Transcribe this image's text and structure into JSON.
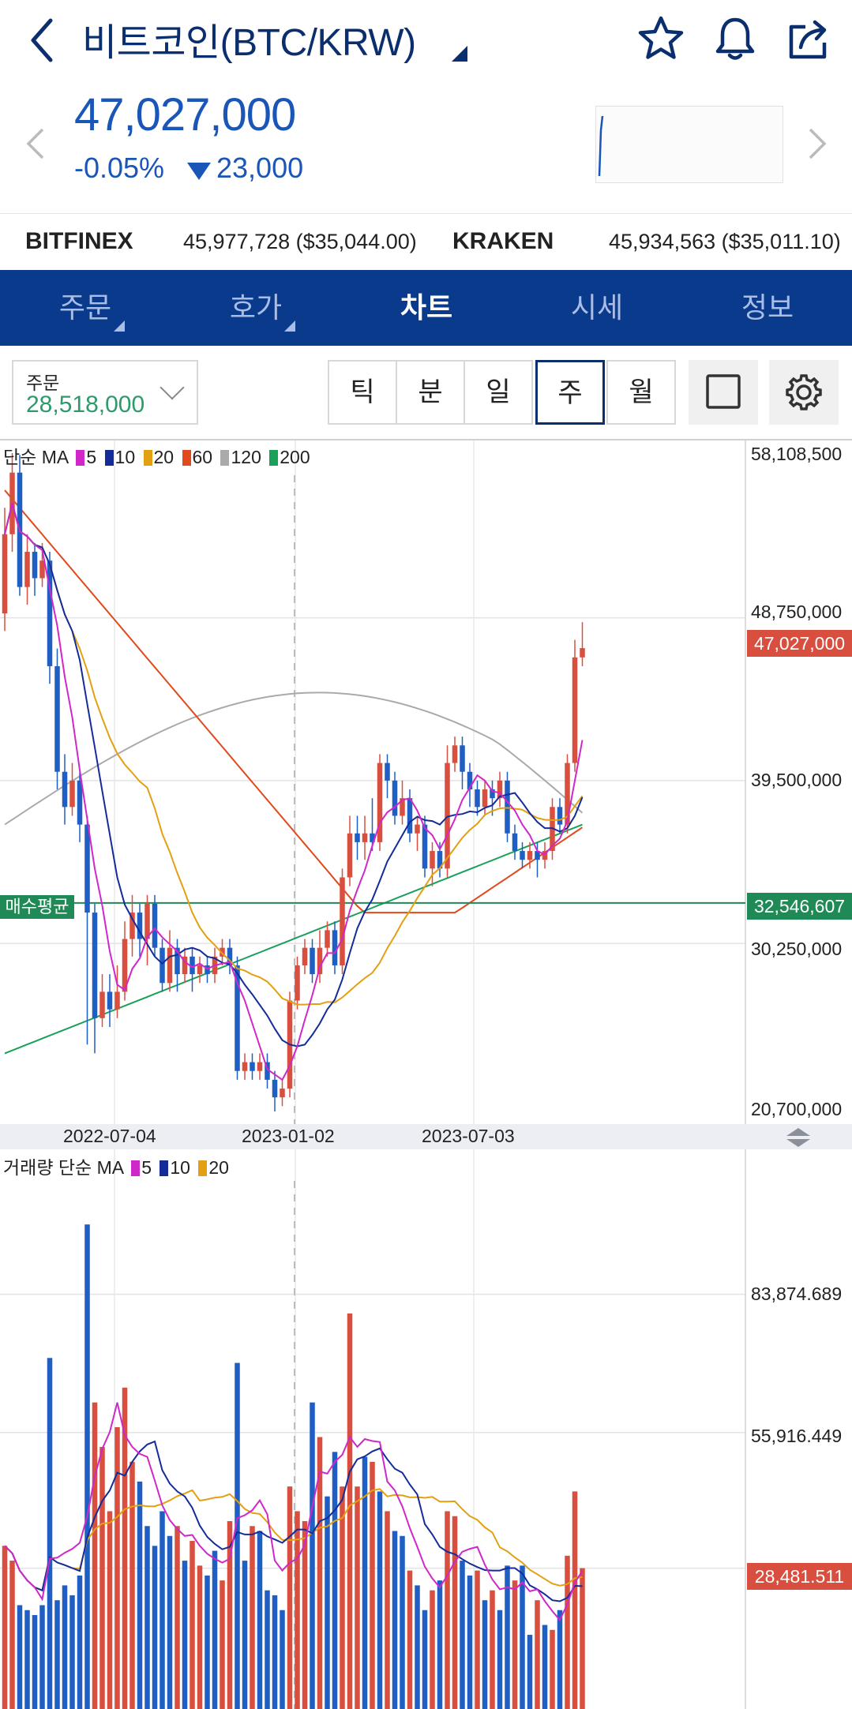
{
  "header": {
    "title": "비트코인(BTC/KRW)",
    "price": "47,027,000",
    "change_pct": "-0.05%",
    "change_amt": "23,000"
  },
  "exchanges": [
    {
      "name": "BITFINEX",
      "value": "45,977,728 ($35,044.00)"
    },
    {
      "name": "KRAKEN",
      "value": "45,934,563 ($35,011.10)"
    }
  ],
  "tabs": [
    {
      "label": "주문",
      "corner": true
    },
    {
      "label": "호가",
      "corner": true
    },
    {
      "label": "차트",
      "active": true
    },
    {
      "label": "시세"
    },
    {
      "label": "정보"
    }
  ],
  "order": {
    "label": "주문",
    "value": "28,518,000"
  },
  "periods": [
    "틱",
    "분",
    "일",
    "주",
    "월"
  ],
  "selected_period": "주",
  "colors": {
    "up": "#d84f3f",
    "down": "#1f5fc4",
    "ma5": "#d028c8",
    "ma10": "#142c9a",
    "ma20": "#e3a012",
    "ma60": "#e04a1c",
    "ma120": "#aaaaaa",
    "ma200": "#1aa05a",
    "accent": "#0a3a8c"
  },
  "price_chart": {
    "legend_prefix": "단순 MA",
    "legend": [
      {
        "period": "5",
        "color": "#d028c8"
      },
      {
        "period": "10",
        "color": "#142c9a"
      },
      {
        "period": "20",
        "color": "#e3a012"
      },
      {
        "period": "60",
        "color": "#e04a1c"
      },
      {
        "period": "120",
        "color": "#aaaaaa"
      },
      {
        "period": "200",
        "color": "#1aa05a"
      }
    ],
    "y_labels": [
      "58,108,500",
      "48,750,000",
      "39,500,000",
      "30,250,000",
      "20,700,000"
    ],
    "current_price_tag": "47,027,000",
    "avg_buy_label": "매수평균",
    "avg_buy_tag": "32,546,607",
    "x_labels": [
      "2022-07-04",
      "2023-01-02",
      "2023-07-03"
    ]
  },
  "volume_chart": {
    "legend_prefix": "거래량 단순 MA",
    "legend": [
      {
        "period": "5",
        "color": "#d028c8"
      },
      {
        "period": "10",
        "color": "#142c9a"
      },
      {
        "period": "20",
        "color": "#e3a012"
      }
    ],
    "y_labels": [
      "83,874.689",
      "55,916.449"
    ],
    "current_volume_tag": "28,481.511"
  },
  "chart_data": {
    "type": "candlestick",
    "ylim": [
      20700000,
      58108500
    ],
    "candles": [
      {
        "o": 49000000,
        "c": 53500000,
        "h": 55000000,
        "l": 48000000
      },
      {
        "o": 53500000,
        "c": 57000000,
        "h": 58108500,
        "l": 52500000
      },
      {
        "o": 57000000,
        "c": 50500000,
        "h": 58000000,
        "l": 50000000
      },
      {
        "o": 50500000,
        "c": 52500000,
        "h": 53500000,
        "l": 49500000
      },
      {
        "o": 52500000,
        "c": 51000000,
        "h": 53000000,
        "l": 50000000
      },
      {
        "o": 51000000,
        "c": 52000000,
        "h": 53000000,
        "l": 50500000
      },
      {
        "o": 52000000,
        "c": 46000000,
        "h": 52500000,
        "l": 45000000
      },
      {
        "o": 46000000,
        "c": 40000000,
        "h": 47000000,
        "l": 39000000
      },
      {
        "o": 40000000,
        "c": 38000000,
        "h": 41000000,
        "l": 37000000
      },
      {
        "o": 38000000,
        "c": 39500000,
        "h": 40500000,
        "l": 37500000
      },
      {
        "o": 39500000,
        "c": 37000000,
        "h": 40000000,
        "l": 36000000
      },
      {
        "o": 37000000,
        "c": 32000000,
        "h": 37500000,
        "l": 24500000
      },
      {
        "o": 32000000,
        "c": 26000000,
        "h": 32500000,
        "l": 24000000
      },
      {
        "o": 26000000,
        "c": 27500000,
        "h": 28500000,
        "l": 25500000
      },
      {
        "o": 27500000,
        "c": 26500000,
        "h": 28500000,
        "l": 25500000
      },
      {
        "o": 26500000,
        "c": 27500000,
        "h": 29000000,
        "l": 26000000
      },
      {
        "o": 27500000,
        "c": 30500000,
        "h": 31500000,
        "l": 27000000
      },
      {
        "o": 30500000,
        "c": 32000000,
        "h": 33000000,
        "l": 29500000
      },
      {
        "o": 32000000,
        "c": 30500000,
        "h": 32500000,
        "l": 29500000
      },
      {
        "o": 30500000,
        "c": 32500000,
        "h": 33000000,
        "l": 29000000
      },
      {
        "o": 32500000,
        "c": 30000000,
        "h": 33000000,
        "l": 29500000
      },
      {
        "o": 30000000,
        "c": 28000000,
        "h": 30500000,
        "l": 27500000
      },
      {
        "o": 28000000,
        "c": 30000000,
        "h": 31000000,
        "l": 27500000
      },
      {
        "o": 30000000,
        "c": 28500000,
        "h": 30500000,
        "l": 27500000
      },
      {
        "o": 28500000,
        "c": 29500000,
        "h": 30000000,
        "l": 28000000
      },
      {
        "o": 29500000,
        "c": 28500000,
        "h": 30000000,
        "l": 27500000
      },
      {
        "o": 28500000,
        "c": 29000000,
        "h": 29500000,
        "l": 28000000
      },
      {
        "o": 29000000,
        "c": 28500000,
        "h": 29500000,
        "l": 28000000
      },
      {
        "o": 28500000,
        "c": 29500000,
        "h": 30000000,
        "l": 28000000
      },
      {
        "o": 29500000,
        "c": 30000000,
        "h": 30500000,
        "l": 29000000
      },
      {
        "o": 30000000,
        "c": 29000000,
        "h": 30500000,
        "l": 28500000
      },
      {
        "o": 29000000,
        "c": 23000000,
        "h": 29500000,
        "l": 22500000
      },
      {
        "o": 23000000,
        "c": 23500000,
        "h": 24000000,
        "l": 22500000
      },
      {
        "o": 23500000,
        "c": 23000000,
        "h": 24000000,
        "l": 22500000
      },
      {
        "o": 23000000,
        "c": 23500000,
        "h": 24000000,
        "l": 22500000
      },
      {
        "o": 23500000,
        "c": 22500000,
        "h": 24000000,
        "l": 22000000
      },
      {
        "o": 22500000,
        "c": 21500000,
        "h": 23000000,
        "l": 20700000
      },
      {
        "o": 21500000,
        "c": 22000000,
        "h": 22500000,
        "l": 21000000
      },
      {
        "o": 22000000,
        "c": 27000000,
        "h": 27500000,
        "l": 21500000
      },
      {
        "o": 27000000,
        "c": 29000000,
        "h": 29500000,
        "l": 26500000
      },
      {
        "o": 29000000,
        "c": 30000000,
        "h": 30500000,
        "l": 28500000
      },
      {
        "o": 30000000,
        "c": 28500000,
        "h": 30500000,
        "l": 28000000
      },
      {
        "o": 28500000,
        "c": 30000000,
        "h": 31000000,
        "l": 28000000
      },
      {
        "o": 30000000,
        "c": 31000000,
        "h": 31500000,
        "l": 29500000
      },
      {
        "o": 31000000,
        "c": 29000000,
        "h": 31500000,
        "l": 28500000
      },
      {
        "o": 29000000,
        "c": 34000000,
        "h": 34500000,
        "l": 28500000
      },
      {
        "o": 34000000,
        "c": 36500000,
        "h": 37500000,
        "l": 33500000
      },
      {
        "o": 36500000,
        "c": 36000000,
        "h": 37500000,
        "l": 35000000
      },
      {
        "o": 36000000,
        "c": 36500000,
        "h": 37500000,
        "l": 35000000
      },
      {
        "o": 36500000,
        "c": 36000000,
        "h": 38500000,
        "l": 35500000
      },
      {
        "o": 36000000,
        "c": 40500000,
        "h": 41000000,
        "l": 35500000
      },
      {
        "o": 40500000,
        "c": 39500000,
        "h": 41000000,
        "l": 38500000
      },
      {
        "o": 39500000,
        "c": 37500000,
        "h": 40000000,
        "l": 37000000
      },
      {
        "o": 37500000,
        "c": 38500000,
        "h": 39500000,
        "l": 37000000
      },
      {
        "o": 38500000,
        "c": 36500000,
        "h": 39000000,
        "l": 36000000
      },
      {
        "o": 36500000,
        "c": 37000000,
        "h": 37500000,
        "l": 35500000
      },
      {
        "o": 37000000,
        "c": 34500000,
        "h": 37500000,
        "l": 34000000
      },
      {
        "o": 34500000,
        "c": 35500000,
        "h": 36000000,
        "l": 33500000
      },
      {
        "o": 35500000,
        "c": 34500000,
        "h": 36000000,
        "l": 34000000
      },
      {
        "o": 34500000,
        "c": 40500000,
        "h": 41500000,
        "l": 34000000
      },
      {
        "o": 40500000,
        "c": 41500000,
        "h": 42000000,
        "l": 40000000
      },
      {
        "o": 41500000,
        "c": 40000000,
        "h": 42000000,
        "l": 39000000
      },
      {
        "o": 40000000,
        "c": 39000000,
        "h": 40500000,
        "l": 38000000
      },
      {
        "o": 39000000,
        "c": 38000000,
        "h": 39500000,
        "l": 37500000
      },
      {
        "o": 38000000,
        "c": 39000000,
        "h": 39500000,
        "l": 37500000
      },
      {
        "o": 39000000,
        "c": 38500000,
        "h": 39500000,
        "l": 37500000
      },
      {
        "o": 38500000,
        "c": 39500000,
        "h": 40000000,
        "l": 38000000
      },
      {
        "o": 39500000,
        "c": 36500000,
        "h": 40000000,
        "l": 36000000
      },
      {
        "o": 36500000,
        "c": 35500000,
        "h": 37000000,
        "l": 35000000
      },
      {
        "o": 35500000,
        "c": 35000000,
        "h": 36000000,
        "l": 34500000
      },
      {
        "o": 35000000,
        "c": 35500000,
        "h": 36000000,
        "l": 34500000
      },
      {
        "o": 35500000,
        "c": 35000000,
        "h": 36000000,
        "l": 34000000
      },
      {
        "o": 35000000,
        "c": 35500000,
        "h": 36000000,
        "l": 34500000
      },
      {
        "o": 35500000,
        "c": 38000000,
        "h": 38500000,
        "l": 35000000
      },
      {
        "o": 38000000,
        "c": 37000000,
        "h": 38500000,
        "l": 36500000
      },
      {
        "o": 37000000,
        "c": 40500000,
        "h": 41000000,
        "l": 36500000
      },
      {
        "o": 40500000,
        "c": 46500000,
        "h": 47500000,
        "l": 40000000
      },
      {
        "o": 46500000,
        "c": 47027000,
        "h": 48500000,
        "l": 46000000
      }
    ],
    "volumes": [
      {
        "v": 33000,
        "up": true
      },
      {
        "v": 30000,
        "up": true
      },
      {
        "v": 21000,
        "up": false
      },
      {
        "v": 20000,
        "up": false
      },
      {
        "v": 19000,
        "up": false
      },
      {
        "v": 21000,
        "up": false
      },
      {
        "v": 71000,
        "up": false
      },
      {
        "v": 22000,
        "up": false
      },
      {
        "v": 25000,
        "up": false
      },
      {
        "v": 23000,
        "up": false
      },
      {
        "v": 27000,
        "up": false
      },
      {
        "v": 98000,
        "up": false
      },
      {
        "v": 62000,
        "up": true
      },
      {
        "v": 53000,
        "up": true
      },
      {
        "v": 40000,
        "up": true
      },
      {
        "v": 57000,
        "up": true
      },
      {
        "v": 65000,
        "up": true
      },
      {
        "v": 50000,
        "up": true
      },
      {
        "v": 46000,
        "up": false
      },
      {
        "v": 37000,
        "up": false
      },
      {
        "v": 33000,
        "up": false
      },
      {
        "v": 40000,
        "up": false
      },
      {
        "v": 35000,
        "up": false
      },
      {
        "v": 37000,
        "up": true
      },
      {
        "v": 30000,
        "up": false
      },
      {
        "v": 34000,
        "up": true
      },
      {
        "v": 29000,
        "up": true
      },
      {
        "v": 27000,
        "up": false
      },
      {
        "v": 32000,
        "up": false
      },
      {
        "v": 26000,
        "up": true
      },
      {
        "v": 38000,
        "up": true
      },
      {
        "v": 70000,
        "up": false
      },
      {
        "v": 30000,
        "up": false
      },
      {
        "v": 37000,
        "up": true
      },
      {
        "v": 36000,
        "up": false
      },
      {
        "v": 24000,
        "up": false
      },
      {
        "v": 23000,
        "up": false
      },
      {
        "v": 20000,
        "up": false
      },
      {
        "v": 45000,
        "up": true
      },
      {
        "v": 40000,
        "up": true
      },
      {
        "v": 38000,
        "up": true
      },
      {
        "v": 62000,
        "up": false
      },
      {
        "v": 55000,
        "up": true
      },
      {
        "v": 43000,
        "up": false
      },
      {
        "v": 52000,
        "up": false
      },
      {
        "v": 45000,
        "up": true
      },
      {
        "v": 80000,
        "up": true
      },
      {
        "v": 45000,
        "up": true
      },
      {
        "v": 51000,
        "up": false
      },
      {
        "v": 50000,
        "up": true
      },
      {
        "v": 44000,
        "up": false
      },
      {
        "v": 40000,
        "up": true
      },
      {
        "v": 36000,
        "up": false
      },
      {
        "v": 35000,
        "up": false
      },
      {
        "v": 28000,
        "up": true
      },
      {
        "v": 25000,
        "up": false
      },
      {
        "v": 20000,
        "up": false
      },
      {
        "v": 24000,
        "up": true
      },
      {
        "v": 26000,
        "up": false
      },
      {
        "v": 40000,
        "up": true
      },
      {
        "v": 39000,
        "up": true
      },
      {
        "v": 30000,
        "up": false
      },
      {
        "v": 27000,
        "up": false
      },
      {
        "v": 28000,
        "up": true
      },
      {
        "v": 22000,
        "up": false
      },
      {
        "v": 24000,
        "up": true
      },
      {
        "v": 20000,
        "up": false
      },
      {
        "v": 29000,
        "up": false
      },
      {
        "v": 26000,
        "up": true
      },
      {
        "v": 29000,
        "up": false
      },
      {
        "v": 15000,
        "up": false
      },
      {
        "v": 22000,
        "up": true
      },
      {
        "v": 17000,
        "up": false
      },
      {
        "v": 16000,
        "up": true
      },
      {
        "v": 20000,
        "up": false
      },
      {
        "v": 31000,
        "up": true
      },
      {
        "v": 44000,
        "up": true
      },
      {
        "v": 28481,
        "up": true
      }
    ],
    "volume_ylim": [
      0,
      110000
    ]
  }
}
